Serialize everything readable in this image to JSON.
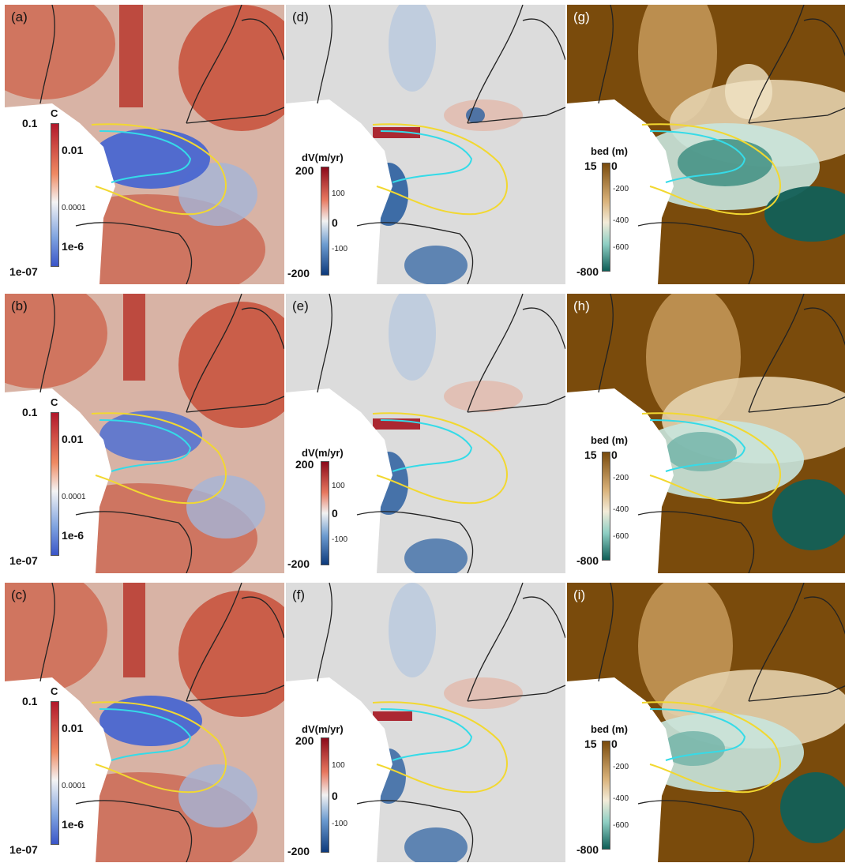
{
  "panels": {
    "a": {
      "label": "(a)"
    },
    "b": {
      "label": "(b)"
    },
    "c": {
      "label": "(c)"
    },
    "d": {
      "label": "(d)"
    },
    "e": {
      "label": "(e)"
    },
    "f": {
      "label": "(f)"
    },
    "g": {
      "label": "(g)"
    },
    "h": {
      "label": "(h)"
    },
    "i": {
      "label": "(i)"
    }
  },
  "colorbars": {
    "C": {
      "title": "C",
      "top": "0.1",
      "t1": "0.01",
      "t2": "0.0001",
      "t3": "1e-6",
      "bottom": "1e-07",
      "colors": [
        "#b2182b",
        "#ef8a62",
        "#f4f4f4",
        "#7fa3e0",
        "#3a55c8"
      ]
    },
    "dV": {
      "title": "dV(m/yr)",
      "top": "200",
      "t1": "100",
      "t2": "0",
      "t3": "-100",
      "bottom": "-200",
      "colors": [
        "#8b0a1a",
        "#e8785f",
        "#f2f2f2",
        "#6c9bd0",
        "#0d3a7c"
      ]
    },
    "bed": {
      "title": "bed (m)",
      "top": "15",
      "top2": "0",
      "t1": "-200",
      "t2": "-400",
      "t3": "-600",
      "bottom": "-800",
      "colors": [
        "#7a4b0c",
        "#d9b27a",
        "#f3ecd9",
        "#8fcfc4",
        "#0e5e57"
      ]
    }
  }
}
